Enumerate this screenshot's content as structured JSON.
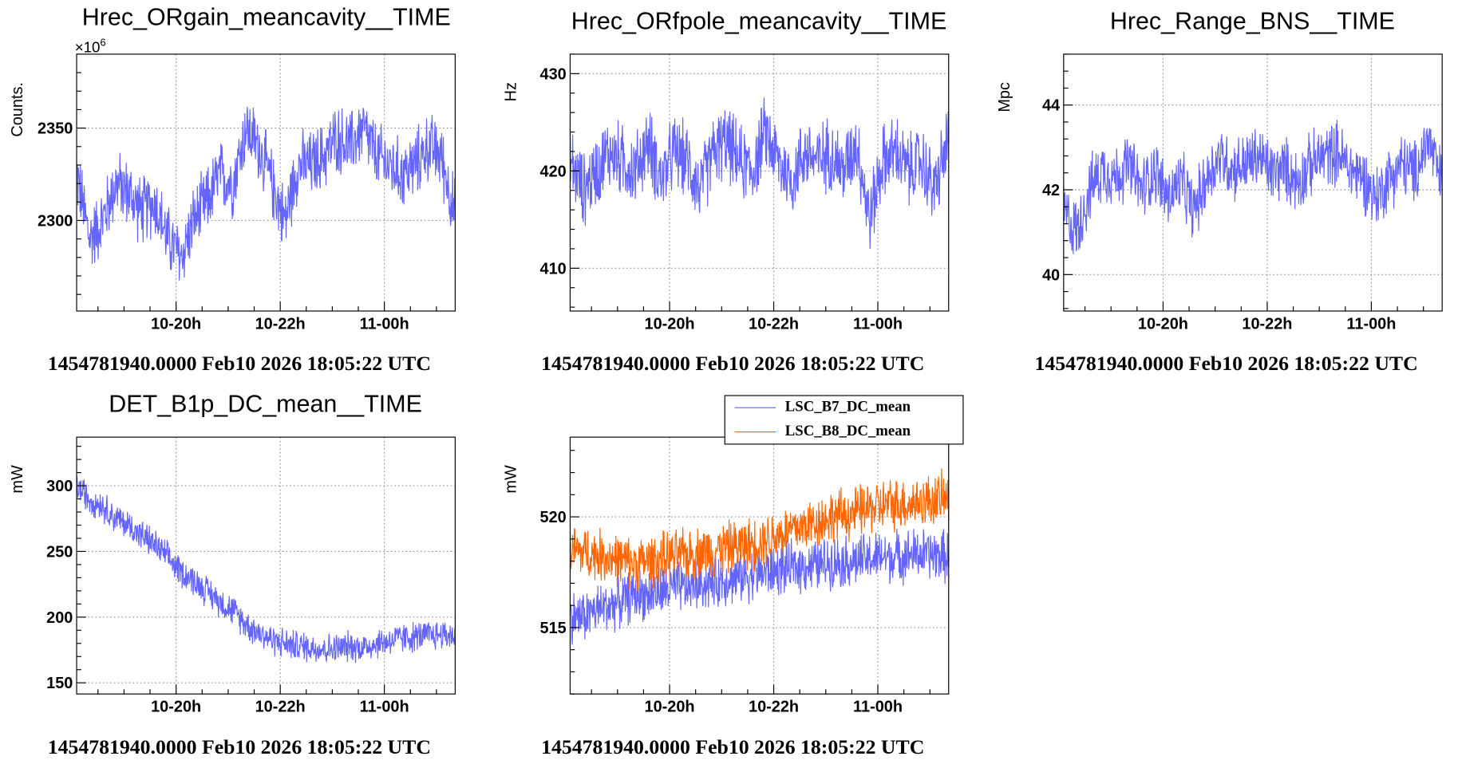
{
  "timestamp": "1454781940.0000 Feb10 2026 18:05:22 UTC",
  "chart_data": [
    {
      "type": "line",
      "title": "Hrec_ORgain_meancavity__TIME",
      "ylabel": "Counts.",
      "yexponent": "×10",
      "yexponent_power": "6",
      "ylim": [
        2251,
        2390
      ],
      "yticks": [
        {
          "value": 2300,
          "label": "2300"
        },
        {
          "value": 2350,
          "label": "2350"
        }
      ],
      "xlim": [
        0,
        7.27
      ],
      "xticks": [
        {
          "value": 1.91,
          "label": "10-20h"
        },
        {
          "value": 3.91,
          "label": "10-22h"
        },
        {
          "value": 5.91,
          "label": "11-00h"
        }
      ],
      "series": [
        {
          "name": "Hrec_ORgain_meancavity",
          "color": "#6464ff",
          "step": 0.25,
          "noise": 22,
          "values": [
            2325,
            2290,
            2300,
            2320,
            2315,
            2305,
            2310,
            2290,
            2280,
            2300,
            2310,
            2325,
            2320,
            2350,
            2340,
            2320,
            2300,
            2330,
            2330,
            2335,
            2345,
            2340,
            2350,
            2335,
            2330,
            2325,
            2330,
            2340,
            2335,
            2305
          ]
        }
      ]
    },
    {
      "type": "line",
      "title": "Hrec_ORfpole_meancavity__TIME",
      "ylabel": "Hz",
      "ylim": [
        405.6,
        432
      ],
      "yticks": [
        {
          "value": 410,
          "label": "410"
        },
        {
          "value": 420,
          "label": "420"
        },
        {
          "value": 430,
          "label": "430"
        }
      ],
      "xlim": [
        0,
        7.27
      ],
      "xticks": [
        {
          "value": 1.91,
          "label": "10-20h"
        },
        {
          "value": 3.91,
          "label": "10-22h"
        },
        {
          "value": 5.91,
          "label": "11-00h"
        }
      ],
      "series": [
        {
          "name": "Hrec_ORfpole_meancavity",
          "color": "#6464ff",
          "step": 0.25,
          "noise": 4.5,
          "values": [
            421,
            418,
            420,
            422,
            421,
            420,
            423,
            419,
            422,
            421,
            418,
            422,
            423,
            421,
            420,
            424,
            421,
            419,
            422,
            421,
            422,
            420,
            423,
            415,
            421,
            422,
            420,
            421,
            418,
            423
          ]
        }
      ]
    },
    {
      "type": "line",
      "title": "Hrec_Range_BNS__TIME",
      "ylabel": "Mpc",
      "ylim": [
        39.14,
        45.2
      ],
      "yticks": [
        {
          "value": 40,
          "label": "40"
        },
        {
          "value": 42,
          "label": "42"
        },
        {
          "value": 44,
          "label": "44"
        }
      ],
      "xlim": [
        0,
        7.27
      ],
      "xticks": [
        {
          "value": 1.91,
          "label": "10-20h"
        },
        {
          "value": 3.91,
          "label": "10-22h"
        },
        {
          "value": 5.91,
          "label": "11-00h"
        }
      ],
      "series": [
        {
          "name": "Hrec_Range_BNS",
          "color": "#6464ff",
          "step": 0.25,
          "noise": 0.9,
          "values": [
            41.5,
            41,
            42,
            42.5,
            42.3,
            42.6,
            42,
            42.5,
            41.8,
            42.2,
            41.5,
            42.3,
            42.8,
            42.5,
            42.6,
            42.8,
            42.4,
            42.5,
            42.2,
            42.6,
            42.8,
            42.9,
            42.5,
            42.3,
            41.8,
            42.3,
            42.6,
            42.4,
            43.2,
            42.2
          ]
        }
      ]
    },
    {
      "type": "line",
      "title": "DET_B1p_DC_mean__TIME",
      "ylabel": "mW",
      "ylim": [
        141.5,
        337
      ],
      "yticks": [
        {
          "value": 150,
          "label": "150"
        },
        {
          "value": 200,
          "label": "200"
        },
        {
          "value": 250,
          "label": "250"
        },
        {
          "value": 300,
          "label": "300"
        }
      ],
      "xlim": [
        0,
        7.27
      ],
      "xticks": [
        {
          "value": 1.91,
          "label": "10-20h"
        },
        {
          "value": 3.91,
          "label": "10-22h"
        },
        {
          "value": 5.91,
          "label": "11-00h"
        }
      ],
      "series": [
        {
          "name": "DET_B1p_DC_mean",
          "color": "#6464ff",
          "step": 0.25,
          "noise": 14,
          "values": [
            300,
            290,
            285,
            275,
            270,
            262,
            255,
            245,
            235,
            228,
            220,
            212,
            205,
            195,
            188,
            183,
            180,
            178,
            177,
            176,
            176,
            178,
            177,
            180,
            182,
            184,
            185,
            186,
            187,
            186
          ]
        }
      ]
    },
    {
      "type": "line",
      "title": "",
      "ylabel": "mW",
      "ylim": [
        512,
        523.6
      ],
      "yticks": [
        {
          "value": 515,
          "label": "515"
        },
        {
          "value": 520,
          "label": "520"
        }
      ],
      "xlim": [
        0,
        7.27
      ],
      "xticks": [
        {
          "value": 1.91,
          "label": "10-20h"
        },
        {
          "value": 3.91,
          "label": "10-22h"
        },
        {
          "value": 5.91,
          "label": "11-00h"
        }
      ],
      "legend": "top-right",
      "series": [
        {
          "name": "LSC_B7_DC_mean",
          "color": "#6464ff",
          "step": 0.25,
          "noise": 1.4,
          "values": [
            515.5,
            515.5,
            515.8,
            516,
            516.2,
            516.5,
            516.5,
            516.6,
            516.8,
            516.8,
            517,
            517,
            517.2,
            517.3,
            517.4,
            517.5,
            517.6,
            517.7,
            517.8,
            517.8,
            518,
            518,
            518,
            518.1,
            518.2,
            518.2,
            518.3,
            518.3,
            518.3,
            518.2
          ]
        },
        {
          "name": "LSC_B8_DC_mean",
          "color": "#ff6600",
          "step": 0.25,
          "noise": 1.4,
          "values": [
            518.5,
            518.4,
            518.3,
            518.2,
            518,
            517.9,
            518,
            518.1,
            518.2,
            518.3,
            518.4,
            518.5,
            518.6,
            518.7,
            518.8,
            519,
            519.2,
            519.4,
            519.6,
            519.8,
            520,
            520.1,
            520.2,
            520.4,
            520.5,
            520.6,
            520.6,
            520.7,
            520.8,
            520.8
          ]
        }
      ]
    }
  ]
}
